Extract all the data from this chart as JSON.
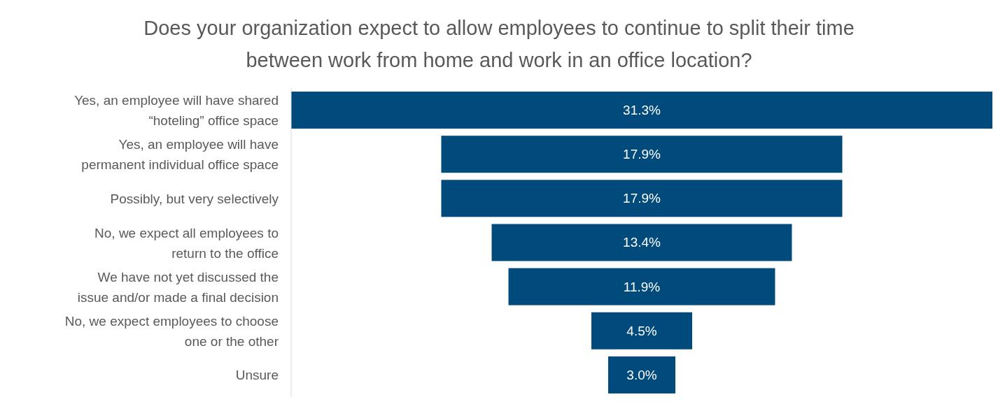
{
  "chart_data": {
    "type": "other",
    "title": "Does your organization expect to allow employees to continue to split their time between work from home and work in an office location?",
    "categories": [
      "Yes, an employee will have shared “hoteling” office space",
      "Yes, an employee will have permanent individual office space",
      "Possibly, but very selectively",
      "No, we expect all employees to return to the office",
      "We have not yet discussed the issue and/or made a final decision",
      "No, we expect employees to choose one or the other",
      "Unsure"
    ],
    "values": [
      31.3,
      17.9,
      17.9,
      13.4,
      11.9,
      4.5,
      3.0
    ],
    "value_labels": [
      "31.3%",
      "17.9%",
      "17.9%",
      "13.4%",
      "11.9%",
      "4.5%",
      "3.0%"
    ],
    "color": "#004a7c"
  }
}
